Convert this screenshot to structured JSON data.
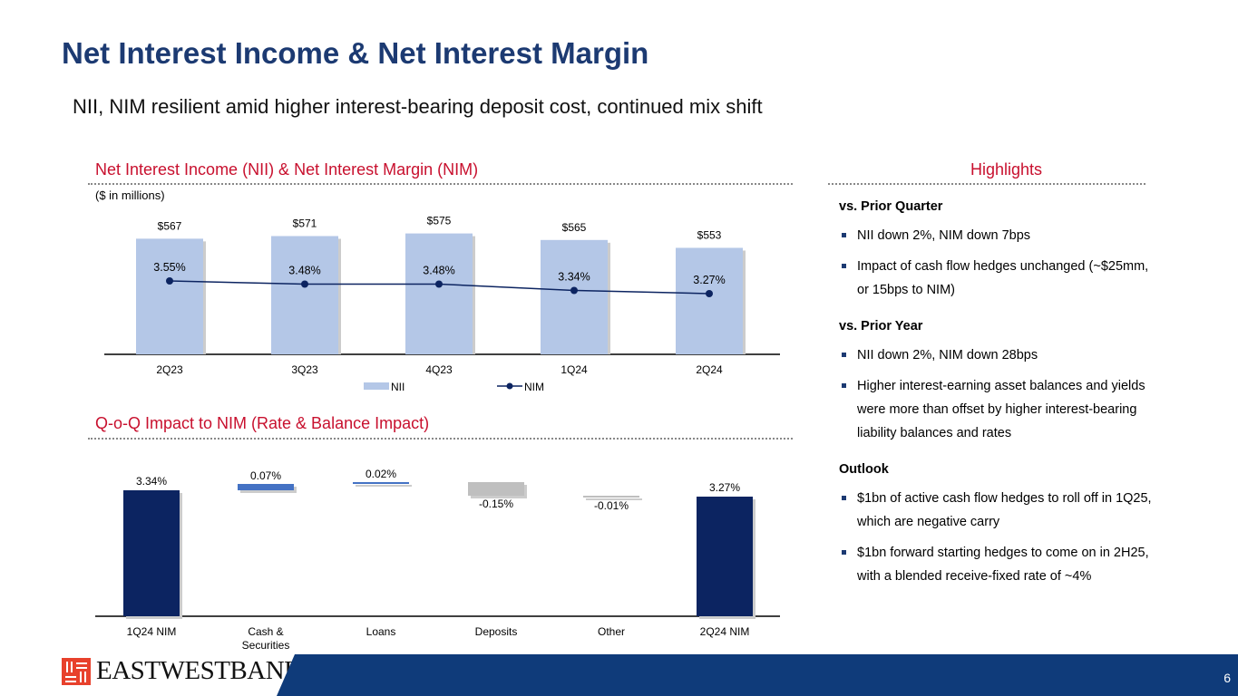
{
  "title": "Net Interest Income & Net Interest Margin",
  "subtitle": "NII, NIM resilient amid higher interest-bearing deposit cost, continued mix shift",
  "highlights": {
    "heading": "Highlights",
    "sections": [
      {
        "title": "vs. Prior Quarter",
        "bullets": [
          "NII down 2%, NIM down 7bps",
          "Impact of cash flow hedges unchanged (~$25mm, or 15bps to NIM)"
        ]
      },
      {
        "title": "vs. Prior Year",
        "bullets": [
          "NII down 2%, NIM down 28bps",
          "Higher interest-earning asset balances and yields were more than offset by higher interest-bearing liability balances and rates"
        ]
      },
      {
        "title": "Outlook",
        "bullets": [
          "$1bn of active cash flow hedges to roll off in 1Q25, which are negative carry",
          "$1bn forward starting hedges to come on in 2H25, with a blended receive-fixed rate of ~4%"
        ]
      }
    ]
  },
  "logo": {
    "text": "EASTWESTBANK"
  },
  "page_number": "6",
  "colors": {
    "nii": "#b4c7e7",
    "nim": "#0c2461",
    "navy": "#0c2461",
    "pos": "#4472c4",
    "neg": "#bfbfbf",
    "accent": "#c8102e"
  },
  "chart_data": [
    {
      "type": "bar",
      "title": "Net Interest Income (NII) & Net Interest Margin (NIM)",
      "units": "($ in millions)",
      "categories": [
        "2Q23",
        "3Q23",
        "4Q23",
        "1Q24",
        "2Q24"
      ],
      "series": [
        {
          "name": "NII",
          "kind": "bar",
          "values": [
            567,
            571,
            575,
            565,
            553
          ],
          "labels": [
            "$567",
            "$571",
            "$575",
            "$565",
            "$553"
          ]
        },
        {
          "name": "NIM",
          "kind": "line",
          "values": [
            3.55,
            3.48,
            3.48,
            3.34,
            3.27
          ],
          "labels": [
            "3.55%",
            "3.48%",
            "3.48%",
            "3.34%",
            "3.27%"
          ]
        }
      ],
      "legend": "bottom",
      "ylim": [
        390,
        580
      ]
    },
    {
      "type": "waterfall",
      "title": "Q-o-Q Impact to NIM (Rate & Balance Impact)",
      "categories": [
        "1Q24 NIM",
        "Cash & Securities",
        "Loans",
        "Deposits",
        "Other",
        "2Q24 NIM"
      ],
      "values": [
        3.34,
        0.07,
        0.02,
        -0.15,
        -0.01,
        3.27
      ],
      "labels": [
        "3.34%",
        "0.07%",
        "0.02%",
        "-0.15%",
        "-0.01%",
        "3.27%"
      ],
      "ylim": [
        1.95,
        3.5
      ]
    }
  ]
}
